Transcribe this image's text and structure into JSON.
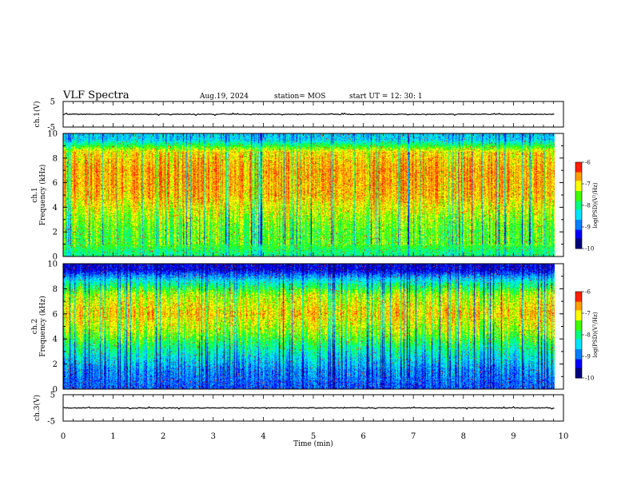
{
  "header": {
    "title": "VLF Spectra",
    "date": "Aug.19, 2024",
    "station": "station= MOS",
    "start_ut": "start  UT  =   12: 30: 1"
  },
  "chart_data": [
    {
      "type": "line",
      "panel": "ch1-waveform",
      "ylabel": "ch.1(V)",
      "ytick_labels": [
        "5",
        "-5"
      ],
      "ylim": [
        -5,
        5
      ],
      "baseline_value": 0,
      "color": "#000000"
    },
    {
      "type": "heatmap",
      "panel": "ch1-spectrogram",
      "ylabel": "ch.1\nFrequency (kHz)",
      "ytick_labels": [
        "0",
        "2",
        "4",
        "6",
        "8",
        "10"
      ],
      "ylim": [
        0,
        10
      ],
      "xlim": [
        0,
        9.83
      ],
      "intensity_profile_khz": [
        {
          "f": 0.25,
          "level": -8.0
        },
        {
          "f": 1.0,
          "level": -7.6
        },
        {
          "f": 2.0,
          "level": -7.6
        },
        {
          "f": 3.0,
          "level": -7.4
        },
        {
          "f": 5.0,
          "level": -6.8
        },
        {
          "f": 7.0,
          "level": -6.7
        },
        {
          "f": 8.5,
          "level": -7.0
        },
        {
          "f": 9.5,
          "level": -8.5
        }
      ],
      "colorbar": {
        "label": "log(PSD)(V²/Hz)",
        "ticks": [
          "-6",
          "-7",
          "-8",
          "-9",
          "-10"
        ],
        "range": [
          -10,
          -6
        ]
      }
    },
    {
      "type": "heatmap",
      "panel": "ch2-spectrogram",
      "ylabel": "ch.2\nFrequency (kHz)",
      "ytick_labels": [
        "0",
        "2",
        "4",
        "6",
        "8",
        "10"
      ],
      "ylim": [
        0,
        10
      ],
      "xlim": [
        0,
        9.83
      ],
      "intensity_profile_khz": [
        {
          "f": 0.25,
          "level": -9.0
        },
        {
          "f": 1.5,
          "level": -8.8
        },
        {
          "f": 3.0,
          "level": -8.2
        },
        {
          "f": 4.5,
          "level": -7.4
        },
        {
          "f": 6.0,
          "level": -6.9
        },
        {
          "f": 7.5,
          "level": -7.3
        },
        {
          "f": 8.5,
          "level": -8.2
        },
        {
          "f": 9.5,
          "level": -9.4
        }
      ],
      "colorbar": {
        "label": "log(PSD)(V²/Hz)",
        "ticks": [
          "-6",
          "-7",
          "-8",
          "-9",
          "-10"
        ],
        "range": [
          -10,
          -6
        ]
      }
    },
    {
      "type": "line",
      "panel": "ch3-waveform",
      "ylabel": "ch.3(V)",
      "ytick_labels": [
        "5",
        "-5"
      ],
      "ylim": [
        -5,
        5
      ],
      "baseline_value": 0,
      "color": "#000000"
    }
  ],
  "xaxis": {
    "label": "Time  (min)",
    "ticks": [
      "0",
      "1",
      "2",
      "3",
      "4",
      "5",
      "6",
      "7",
      "8",
      "9",
      "10"
    ],
    "range": [
      0,
      10
    ]
  },
  "colormap": [
    "#00007f",
    "#0000ff",
    "#0080ff",
    "#00e5ff",
    "#00ff80",
    "#40ff00",
    "#ffff00",
    "#ffa000",
    "#ff2000",
    "#ffffff"
  ]
}
